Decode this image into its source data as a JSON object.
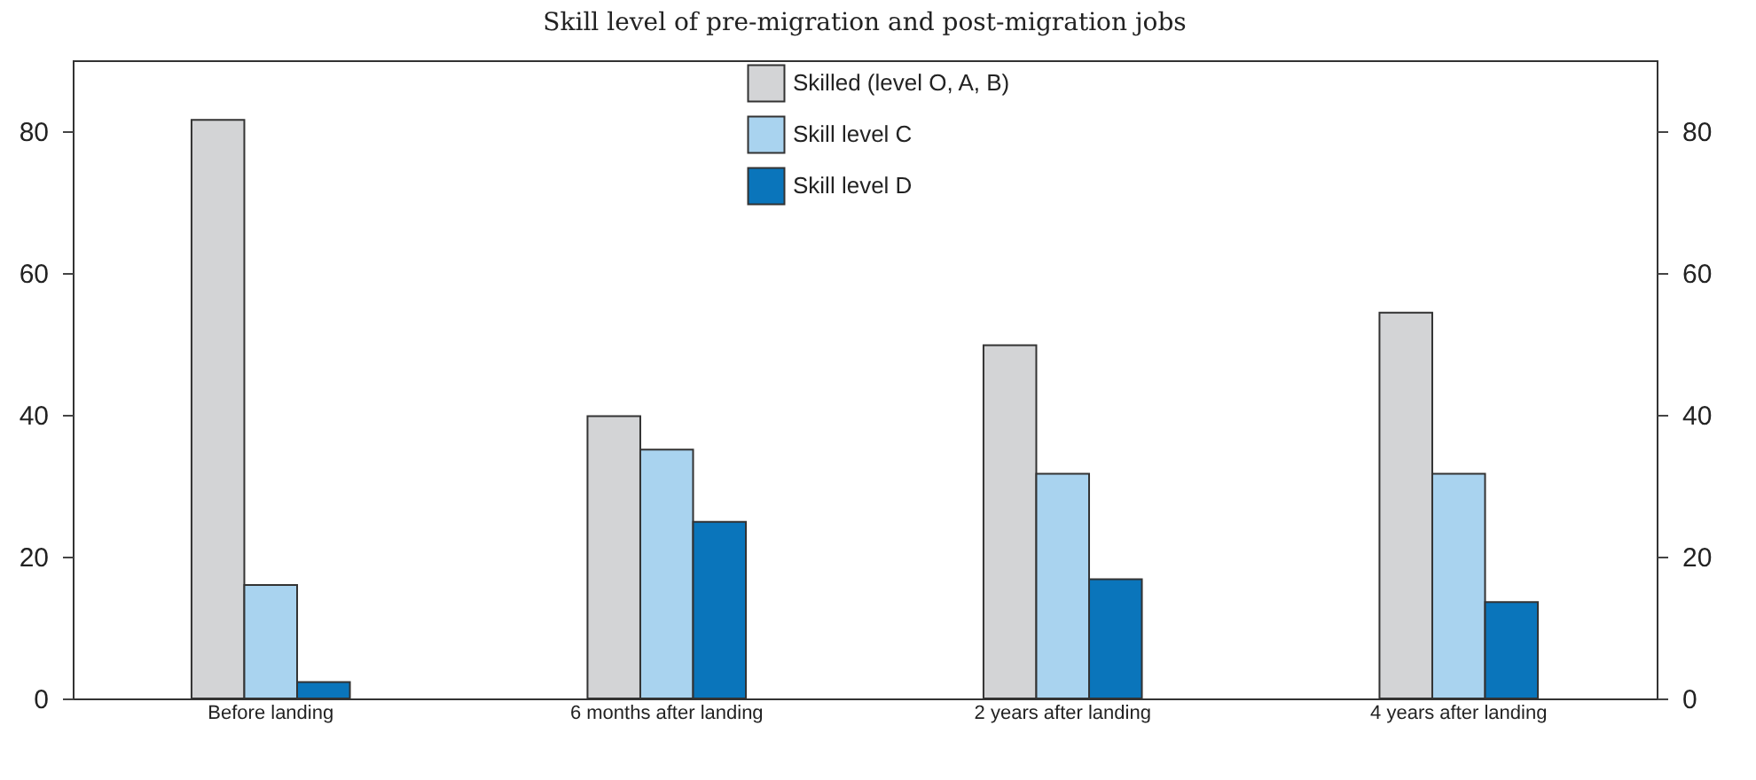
{
  "chart_data": {
    "type": "bar",
    "title": "Skill level of pre-migration and post-migration jobs",
    "categories": [
      "Before landing",
      "6 months after landing",
      "2 years after landing",
      "4 years after landing"
    ],
    "series": [
      {
        "name": "Skilled (level O, A, B)",
        "color": "#d3d4d6",
        "values": [
          81.6,
          39.8,
          49.8,
          54.4
        ]
      },
      {
        "name": "Skill level C",
        "color": "#a9d3ef",
        "values": [
          16.0,
          35.1,
          31.7,
          31.7
        ]
      },
      {
        "name": "Skill level D",
        "color": "#0a75bb",
        "values": [
          2.3,
          24.9,
          16.8,
          13.6
        ]
      }
    ],
    "ylim": [
      0,
      90
    ],
    "yticks": [
      0,
      20,
      40,
      60,
      80
    ],
    "y2lim": [
      0,
      90
    ],
    "y2ticks": [
      0,
      20,
      40,
      60,
      80
    ],
    "grid": false,
    "legend": "top"
  }
}
